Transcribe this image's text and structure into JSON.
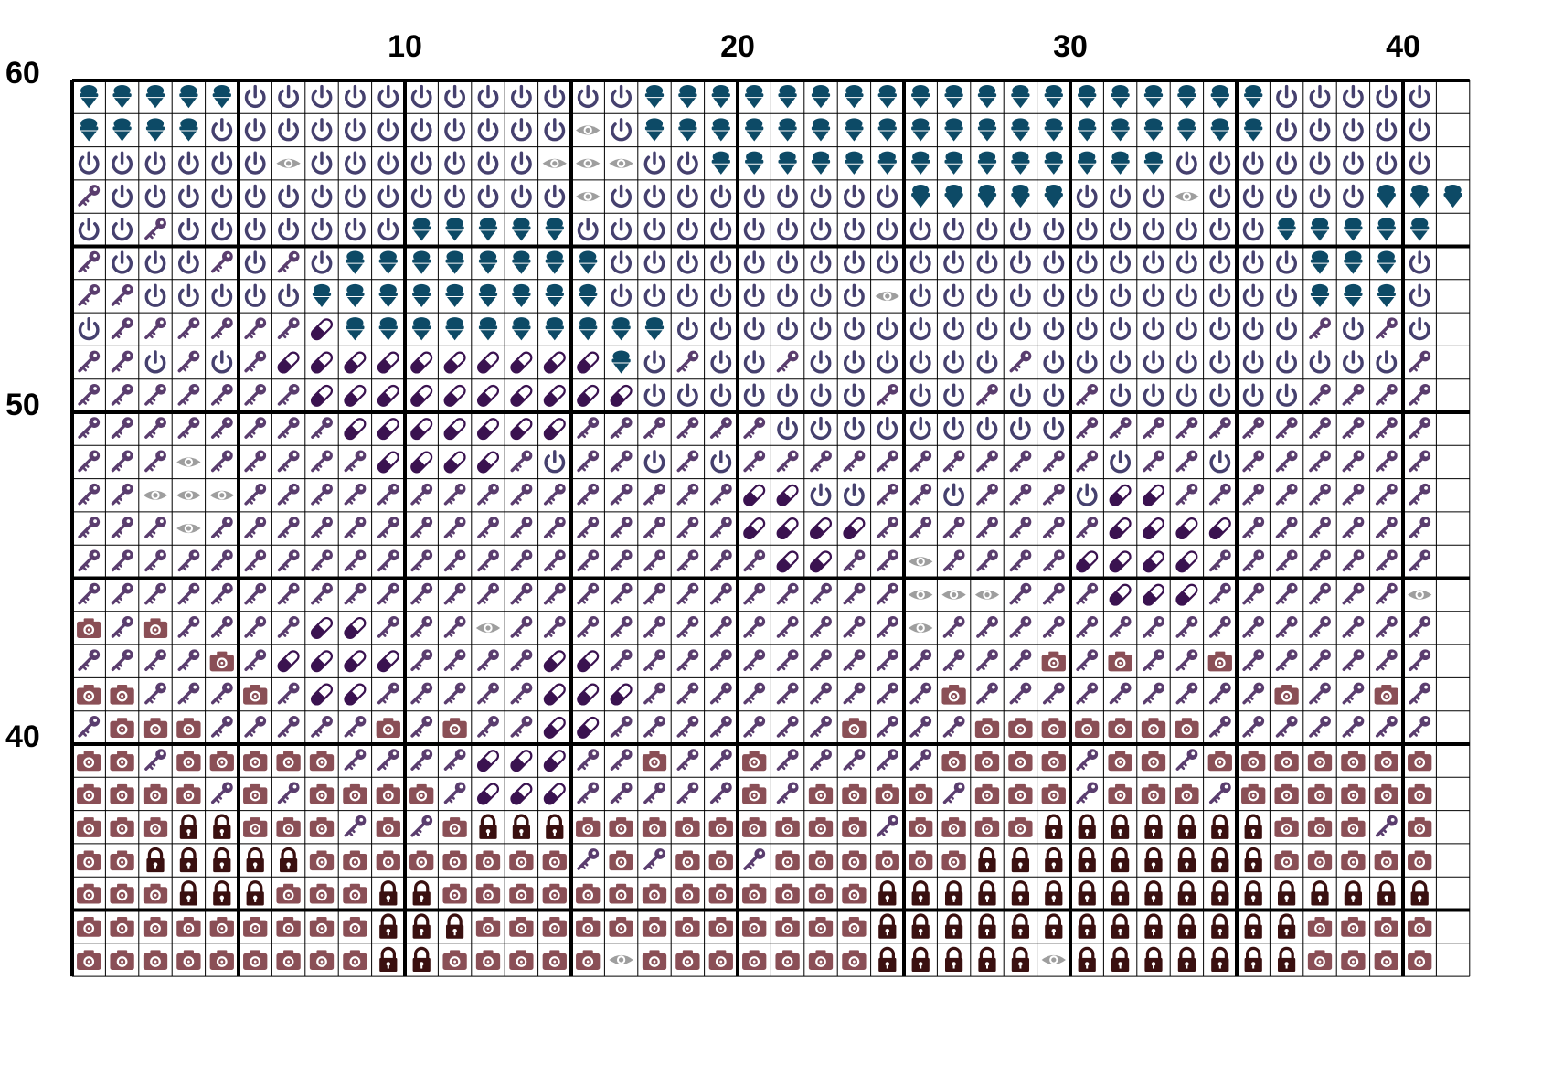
{
  "chart_data": {
    "type": "pattern-grid",
    "title": "",
    "column_labels": [
      "10",
      "20",
      "30",
      "40"
    ],
    "column_label_positions": [
      10,
      20,
      30,
      40
    ],
    "row_labels": [
      "60",
      "50",
      "40"
    ],
    "row_label_positions": [
      60,
      50,
      40
    ],
    "first_row_number": 60,
    "symbol_legend": {
      "I": "ice-cream-icon",
      "P": "power-icon",
      "K": "key-icon",
      "E": "eye-icon",
      "L": "pill-icon",
      "C": "camera-icon",
      "O": "padlock-icon"
    },
    "symbol_colors": {
      "I": "#0d4a66",
      "P": "#45406e",
      "K": "#5a3d6e",
      "E": "#9e9e9e",
      "L": "#3a1250",
      "C": "#8a4f56",
      "O": "#3a1010"
    },
    "rows": [
      "IIIIIPPPPPPPPPPPPIIIIIIIIIIIIIIIIIIIPPPPP",
      "IIIIPPPPPPPPPPPEPIIIIIIIIIIIIIIIIIIIPPPPP",
      "PPPPPPEPPPPPPPEEEPPIIIIIIIIIIIIIIPPPPPPPP",
      "KPPPPPPPPPPPPPPEPPPPPPPPPIIIIIPPPEPPPPPIII",
      "PPKPPPPPPPIIIIIPPPPPPPPPPPPPPPPPPPPPIIIII",
      "KPPPKPKPIIIIIIIIPPPPPPPPPPPPPPPPPPPPPIIIP",
      "KKPPPPPIIIIIIIIIPPPPPPPPEPPPPPPPPPPPPIIIP",
      "PKKKKKKLIIIIIIIIIIPPPPPPPPPPPPPPPPPPPKPKP",
      "KKPKPKLLLLLLLLLLIPKPPKPPPPPPKPPPPPPPPPPPK",
      "KKKKKKKLLLLLLLLLLPPPPPPPKPPKPPKPPPPPPKKKK",
      "KKKKKKKKLLLLLLLKKKKKKPPPPPPPPPKKKKKKKKKKK",
      "KKKEKKKKKLLLLKPKKPKPKKKKKKKKKKKPKKPKKKKKK",
      "KKEEEKKKKKKKKKKKKKKKLLPPKKPKKKPLLKKKKKKKK",
      "KKKEKKKKKKKKKKKKKKKKLLLLKKKKKKKLLLLKKKKKK",
      "KKKKKKKKKKKKKKKKKKKKKLLKKEKKKKLLLLKKKKKKK",
      "KKKKKKKKKKKKKKKKKKKKKKKKKEEEKKKLLLKKKKKKE",
      "CKCKKKKLLKKKEKKKKKKKKKKKKEKKKKKKKKKKKKKKK",
      "KKKKCKLLLLKKKKLLKKKKKKKKKKKKKCKCKKCKKKKKK",
      "CCKKKCKLLKKKKKLLLKKKKKKKKKCKKKKKKKKKCKKCK",
      "KCCCKKKKKCKCKKLLKKKKKKKCKKKCCCCCCCKKKKKKK",
      "CCKCCCCCKKKKLLLKKCKKCKKKKKCCCCKCCKCCCCCCC",
      "CCCCKCKCCCCKLLLKKKKKCKCCCCKCCCKCCCKCCCCCC",
      "CCCOOCCCKCKCOOOCCCCCCCCCKCCCCOOOOOOOCCCKC",
      "CCOOOOOCCCCCCCCKCKCCKCCCCCCOOOOOOOOOCCCCC",
      "CCCOOOCCCOOCCCCCCCCCCCCCOOOOOOOOOOOOOOOOO",
      "CCCCCCCCCOOOCCCCCCCCCCCCOOOOOOOOOOOOOCCCC",
      "CCCCCCCCCOOCCCCCECCCCCCCOOOOOEOOOOOOOCCCC"
    ]
  }
}
